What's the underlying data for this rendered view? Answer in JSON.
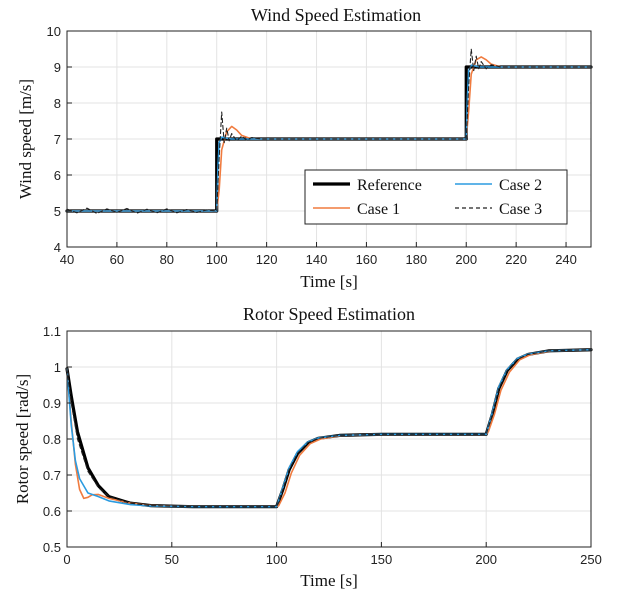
{
  "chart_data": [
    {
      "type": "line",
      "title": "Wind Speed Estimation",
      "xlabel": "Time [s]",
      "ylabel": "Wind speed [m/s]",
      "xlim": [
        40,
        250
      ],
      "ylim": [
        4,
        10
      ],
      "xticks": [
        40,
        60,
        80,
        100,
        120,
        140,
        160,
        180,
        200,
        220,
        240
      ],
      "yticks": [
        4,
        5,
        6,
        7,
        8,
        9,
        10
      ],
      "grid": true,
      "legend": {
        "placement": "bottom-right",
        "columns": 2
      },
      "series": [
        {
          "name": "Reference",
          "color": "#000000",
          "style": "solid-thick",
          "x": [
            40,
            100,
            100,
            200,
            200,
            250
          ],
          "y": [
            5,
            5,
            7,
            7,
            9,
            9
          ]
        },
        {
          "name": "Case 1",
          "color": "#f07b3f",
          "style": "solid",
          "x": [
            40,
            60,
            80,
            100,
            101,
            102,
            104,
            106,
            108,
            110,
            114,
            120,
            160,
            200,
            201,
            202,
            204,
            206,
            208,
            210,
            214,
            220,
            250
          ],
          "y": [
            5,
            5,
            5,
            5,
            5.6,
            6.7,
            7.2,
            7.35,
            7.25,
            7.1,
            7.0,
            7.0,
            7.0,
            7.0,
            7.8,
            8.8,
            9.2,
            9.28,
            9.2,
            9.08,
            9.0,
            9.0,
            9.0
          ]
        },
        {
          "name": "Case 2",
          "color": "#2b9be0",
          "style": "solid",
          "x": [
            40,
            60,
            80,
            100,
            100.5,
            101,
            102,
            104,
            106,
            110,
            120,
            160,
            200,
            200.5,
            201,
            202,
            204,
            206,
            210,
            220,
            250
          ],
          "y": [
            5,
            5,
            5,
            5,
            6.2,
            6.9,
            7.05,
            7.02,
            7.0,
            7.0,
            7.0,
            7.0,
            7.0,
            8.2,
            8.9,
            9.05,
            9.02,
            9.0,
            9.0,
            9.0,
            9.0
          ]
        },
        {
          "name": "Case 3",
          "color": "#222222",
          "style": "dashed",
          "x": [
            40,
            44,
            48,
            52,
            56,
            60,
            64,
            68,
            72,
            76,
            80,
            84,
            88,
            92,
            96,
            100,
            101,
            102,
            103,
            104,
            105,
            106,
            108,
            110,
            112,
            114,
            118,
            122,
            160,
            200,
            201,
            202,
            203,
            204,
            205,
            206,
            208,
            210,
            214,
            220,
            250
          ],
          "y": [
            5.05,
            4.95,
            5.08,
            4.93,
            5.06,
            4.96,
            5.07,
            4.94,
            5.05,
            4.95,
            5.06,
            4.95,
            5.04,
            4.96,
            5.03,
            5.0,
            6.5,
            7.75,
            6.9,
            7.3,
            6.95,
            7.15,
            6.95,
            7.08,
            6.97,
            7.04,
            7.0,
            7.0,
            7.0,
            7.0,
            8.5,
            9.5,
            8.9,
            9.3,
            8.95,
            9.15,
            8.95,
            9.06,
            9.0,
            9.0,
            9.0
          ]
        }
      ]
    },
    {
      "type": "line",
      "title": "Rotor Speed Estimation",
      "xlabel": "Time [s]",
      "ylabel": "Rotor speed [rad/s]",
      "xlim": [
        0,
        250
      ],
      "ylim": [
        0.5,
        1.1
      ],
      "xticks": [
        0,
        50,
        100,
        150,
        200,
        250
      ],
      "yticks": [
        0.5,
        0.6,
        0.7,
        0.8,
        0.9,
        1,
        1.1
      ],
      "grid": true,
      "legend": null,
      "series": [
        {
          "name": "Reference",
          "color": "#000000",
          "style": "solid-thick",
          "x": [
            0,
            2,
            5,
            10,
            15,
            20,
            30,
            40,
            60,
            80,
            100,
            103,
            106,
            110,
            115,
            120,
            130,
            150,
            200,
            203,
            206,
            210,
            215,
            220,
            230,
            250
          ],
          "y": [
            0.995,
            0.92,
            0.82,
            0.72,
            0.67,
            0.64,
            0.622,
            0.615,
            0.612,
            0.612,
            0.612,
            0.66,
            0.715,
            0.76,
            0.79,
            0.802,
            0.81,
            0.813,
            0.813,
            0.87,
            0.94,
            0.99,
            1.022,
            1.035,
            1.045,
            1.048
          ]
        },
        {
          "name": "Case 1",
          "color": "#f07b3f",
          "style": "solid",
          "x": [
            0,
            2,
            4,
            6,
            8,
            10,
            12,
            15,
            20,
            30,
            40,
            60,
            100,
            101,
            104,
            107,
            111,
            116,
            121,
            131,
            150,
            200,
            201,
            204,
            207,
            211,
            216,
            221,
            231,
            250
          ],
          "y": [
            0.995,
            0.85,
            0.73,
            0.66,
            0.635,
            0.638,
            0.645,
            0.646,
            0.635,
            0.622,
            0.615,
            0.612,
            0.612,
            0.615,
            0.65,
            0.705,
            0.755,
            0.787,
            0.8,
            0.81,
            0.813,
            0.813,
            0.82,
            0.87,
            0.935,
            0.985,
            1.02,
            1.034,
            1.045,
            1.048
          ]
        },
        {
          "name": "Case 2",
          "color": "#2b9be0",
          "style": "solid",
          "x": [
            0,
            2,
            4,
            6,
            10,
            15,
            20,
            30,
            40,
            60,
            100,
            103,
            106,
            110,
            115,
            120,
            130,
            150,
            200,
            203,
            206,
            210,
            215,
            220,
            230,
            250
          ],
          "y": [
            0.995,
            0.84,
            0.74,
            0.69,
            0.65,
            0.64,
            0.628,
            0.618,
            0.614,
            0.612,
            0.612,
            0.665,
            0.72,
            0.765,
            0.792,
            0.803,
            0.81,
            0.813,
            0.813,
            0.875,
            0.945,
            0.993,
            1.024,
            1.036,
            1.045,
            1.048
          ]
        },
        {
          "name": "Case 3",
          "color": "#222222",
          "style": "dashed",
          "x": [
            0,
            2,
            5,
            10,
            15,
            20,
            30,
            40,
            60,
            100,
            103,
            106,
            110,
            115,
            120,
            130,
            150,
            200,
            203,
            206,
            210,
            215,
            220,
            230,
            250
          ],
          "y": [
            0.995,
            0.9,
            0.8,
            0.71,
            0.665,
            0.64,
            0.622,
            0.615,
            0.612,
            0.612,
            0.66,
            0.715,
            0.76,
            0.79,
            0.802,
            0.81,
            0.813,
            0.813,
            0.87,
            0.94,
            0.99,
            1.022,
            1.035,
            1.045,
            1.048
          ]
        }
      ]
    }
  ]
}
